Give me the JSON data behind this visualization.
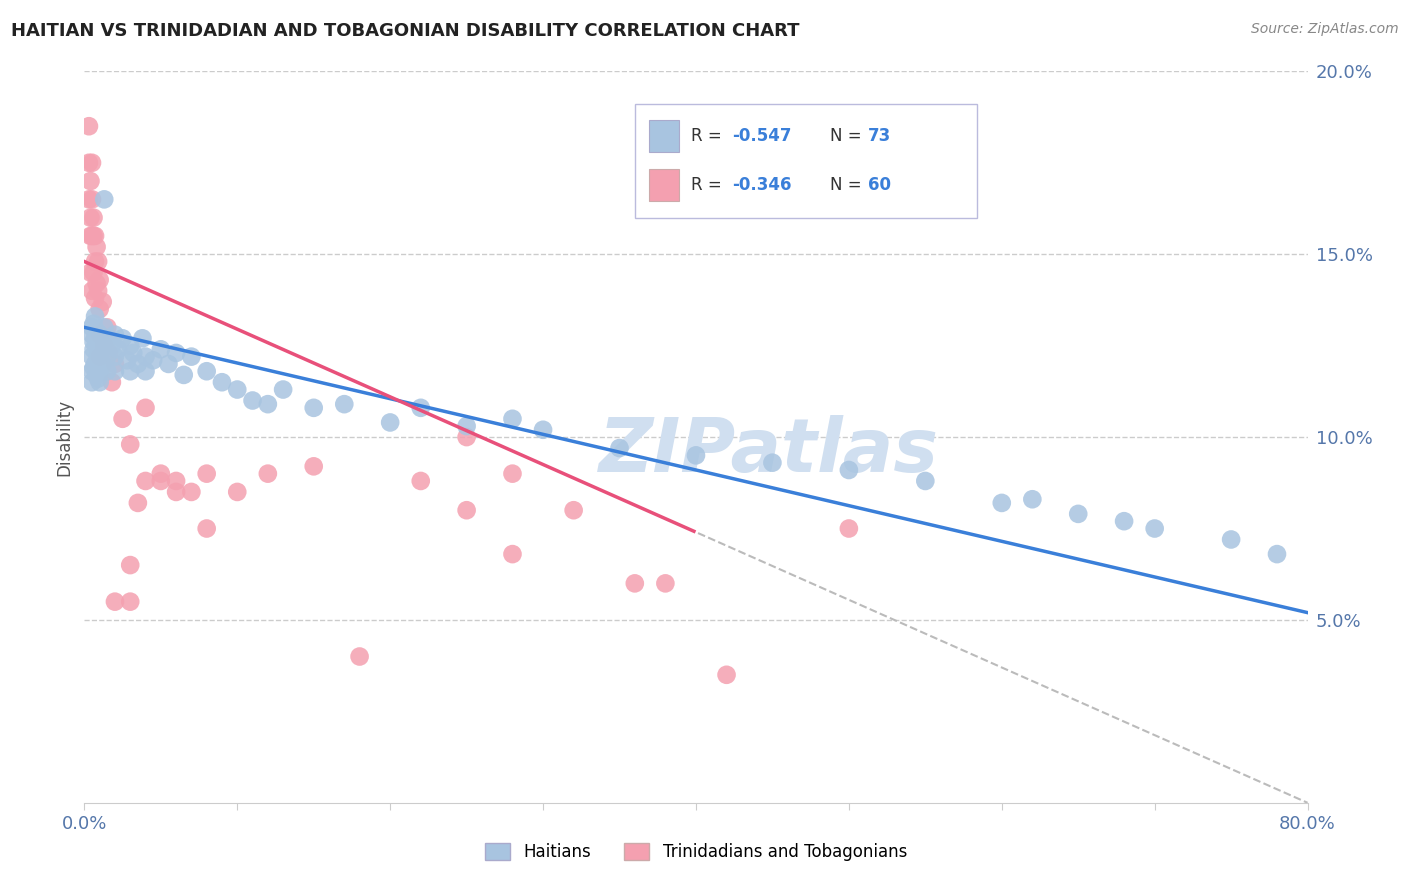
{
  "title": "HAITIAN VS TRINIDADIAN AND TOBAGONIAN DISABILITY CORRELATION CHART",
  "source": "Source: ZipAtlas.com",
  "ylabel": "Disability",
  "xmin": 0.0,
  "xmax": 0.8,
  "ymin": 0.0,
  "ymax": 0.2,
  "yticks": [
    0.05,
    0.1,
    0.15,
    0.2
  ],
  "ytick_labels": [
    "5.0%",
    "10.0%",
    "15.0%",
    "20.0%"
  ],
  "xticks": [
    0.0,
    0.1,
    0.2,
    0.3,
    0.4,
    0.5,
    0.6,
    0.7,
    0.8
  ],
  "haitian_R": -0.547,
  "haitian_N": 73,
  "trini_R": -0.346,
  "trini_N": 60,
  "haitian_color": "#a8c4e0",
  "trini_color": "#f4a0b0",
  "haitian_line_color": "#3a7fd9",
  "trini_line_color": "#e8507a",
  "watermark": "ZIPatlas",
  "watermark_color": "#d0dff0",
  "legend_label_1": "Haitians",
  "legend_label_2": "Trinidadians and Tobagonians",
  "haitian_x": [
    0.005,
    0.005,
    0.005,
    0.005,
    0.005,
    0.006,
    0.006,
    0.006,
    0.006,
    0.007,
    0.007,
    0.007,
    0.008,
    0.008,
    0.008,
    0.009,
    0.009,
    0.01,
    0.01,
    0.01,
    0.01,
    0.012,
    0.012,
    0.013,
    0.013,
    0.015,
    0.015,
    0.016,
    0.018,
    0.02,
    0.02,
    0.02,
    0.022,
    0.025,
    0.028,
    0.03,
    0.03,
    0.032,
    0.035,
    0.038,
    0.04,
    0.04,
    0.045,
    0.05,
    0.055,
    0.06,
    0.065,
    0.07,
    0.08,
    0.09,
    0.1,
    0.11,
    0.12,
    0.13,
    0.15,
    0.17,
    0.2,
    0.22,
    0.25,
    0.28,
    0.3,
    0.35,
    0.4,
    0.45,
    0.5,
    0.55,
    0.6,
    0.62,
    0.65,
    0.68,
    0.7,
    0.75,
    0.78
  ],
  "haitian_y": [
    0.128,
    0.122,
    0.115,
    0.13,
    0.118,
    0.124,
    0.119,
    0.131,
    0.126,
    0.12,
    0.127,
    0.133,
    0.125,
    0.117,
    0.129,
    0.122,
    0.116,
    0.128,
    0.123,
    0.118,
    0.115,
    0.125,
    0.12,
    0.13,
    0.165,
    0.122,
    0.118,
    0.127,
    0.125,
    0.128,
    0.122,
    0.118,
    0.124,
    0.127,
    0.121,
    0.125,
    0.118,
    0.123,
    0.12,
    0.127,
    0.122,
    0.118,
    0.121,
    0.124,
    0.12,
    0.123,
    0.117,
    0.122,
    0.118,
    0.115,
    0.113,
    0.11,
    0.109,
    0.113,
    0.108,
    0.109,
    0.104,
    0.108,
    0.103,
    0.105,
    0.102,
    0.097,
    0.095,
    0.093,
    0.091,
    0.088,
    0.082,
    0.083,
    0.079,
    0.077,
    0.075,
    0.072,
    0.068
  ],
  "trini_x": [
    0.003,
    0.003,
    0.003,
    0.004,
    0.004,
    0.004,
    0.004,
    0.005,
    0.005,
    0.005,
    0.005,
    0.006,
    0.006,
    0.006,
    0.007,
    0.007,
    0.007,
    0.008,
    0.008,
    0.009,
    0.009,
    0.01,
    0.01,
    0.01,
    0.01,
    0.012,
    0.013,
    0.015,
    0.016,
    0.018,
    0.02,
    0.025,
    0.03,
    0.035,
    0.04,
    0.05,
    0.06,
    0.07,
    0.08,
    0.1,
    0.12,
    0.15,
    0.18,
    0.22,
    0.25,
    0.28,
    0.32,
    0.36,
    0.38,
    0.42,
    0.5,
    0.25,
    0.28,
    0.04,
    0.05,
    0.06,
    0.08,
    0.03,
    0.03,
    0.02
  ],
  "trini_y": [
    0.185,
    0.175,
    0.165,
    0.17,
    0.16,
    0.155,
    0.145,
    0.175,
    0.165,
    0.155,
    0.14,
    0.16,
    0.155,
    0.145,
    0.155,
    0.148,
    0.138,
    0.152,
    0.142,
    0.148,
    0.14,
    0.143,
    0.135,
    0.128,
    0.122,
    0.137,
    0.125,
    0.13,
    0.123,
    0.115,
    0.12,
    0.105,
    0.098,
    0.082,
    0.088,
    0.088,
    0.088,
    0.085,
    0.09,
    0.085,
    0.09,
    0.092,
    0.04,
    0.088,
    0.08,
    0.068,
    0.08,
    0.06,
    0.06,
    0.035,
    0.075,
    0.1,
    0.09,
    0.108,
    0.09,
    0.085,
    0.075,
    0.065,
    0.055,
    0.055
  ]
}
